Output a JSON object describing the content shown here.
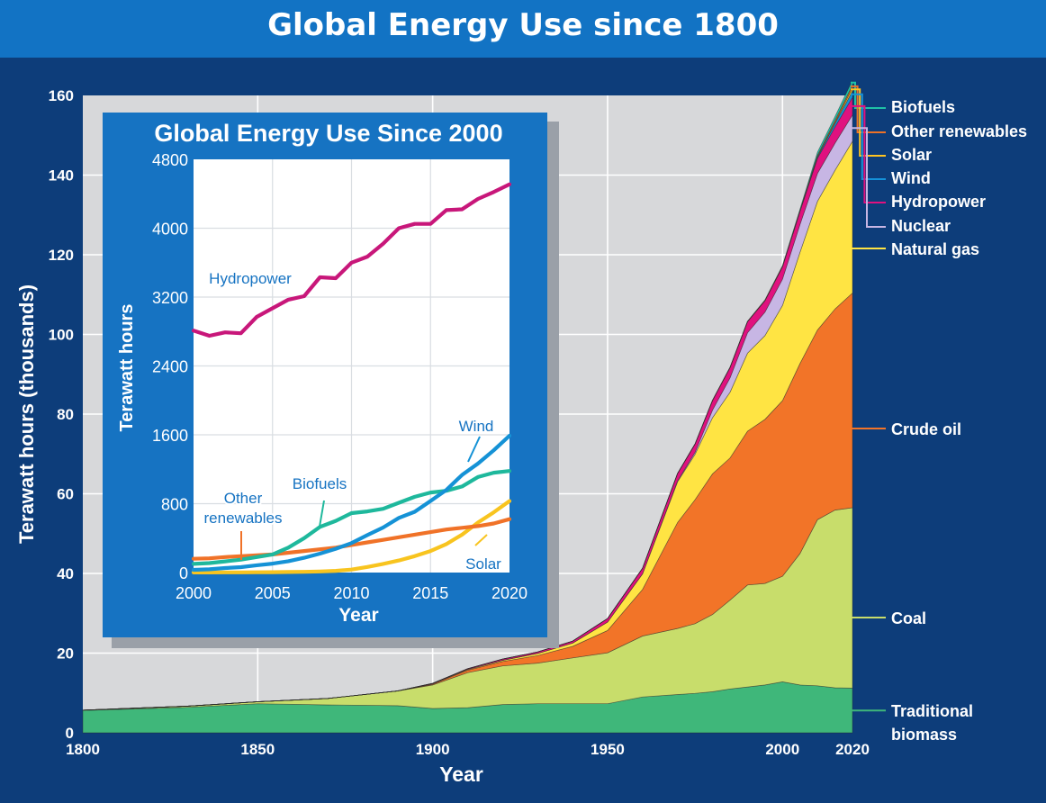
{
  "title": "Global Energy Use since 1800",
  "chart_data": [
    {
      "type": "area",
      "stacked": true,
      "title": "Global Energy Use since 1800",
      "xlabel": "Year",
      "ylabel": "Terawatt hours (thousands)",
      "xlim": [
        1800,
        2020
      ],
      "ylim": [
        0,
        160
      ],
      "xticks": [
        1800,
        1850,
        1900,
        1950,
        2000,
        2020
      ],
      "yticks": [
        0,
        20,
        40,
        60,
        80,
        100,
        120,
        140,
        160
      ],
      "grid": true,
      "legend_position": "right",
      "x": [
        1800,
        1830,
        1850,
        1870,
        1890,
        1900,
        1910,
        1920,
        1930,
        1940,
        1950,
        1960,
        1970,
        1975,
        1980,
        1985,
        1990,
        1995,
        2000,
        2005,
        2010,
        2015,
        2020
      ],
      "series": [
        {
          "name": "Traditional biomass",
          "color": "#3fb77a",
          "values": [
            5.6,
            6.4,
            7.3,
            7.0,
            6.8,
            6.1,
            6.3,
            7.1,
            7.3,
            7.3,
            7.3,
            9.0,
            9.6,
            9.9,
            10.3,
            11.0,
            11.5,
            12.0,
            12.8,
            12.0,
            11.8,
            11.3,
            11.2
          ]
        },
        {
          "name": "Coal",
          "color": "#c8dd6b",
          "values": [
            0.1,
            0.3,
            0.5,
            1.6,
            3.7,
            5.9,
            8.8,
            9.7,
            10.2,
            11.5,
            12.8,
            15.3,
            16.6,
            17.5,
            19.4,
            22.3,
            25.6,
            25.5,
            26.5,
            33.0,
            41.7,
            44.6,
            45.3
          ]
        },
        {
          "name": "Crude oil",
          "color": "#f27428",
          "values": [
            0,
            0,
            0,
            0,
            0,
            0.2,
            0.6,
            1.1,
            1.9,
            2.9,
            5.6,
            11.7,
            26.6,
            31.1,
            35.3,
            35.7,
            38.6,
            41.2,
            44.1,
            47.7,
            47.6,
            50.5,
            53.9
          ]
        },
        {
          "name": "Natural gas",
          "color": "#ffe443",
          "values": [
            0,
            0,
            0,
            0,
            0,
            0.1,
            0.2,
            0.3,
            0.5,
            0.8,
            2.1,
            3.9,
            10.2,
            11.4,
            14.1,
            16.5,
            19.6,
            21.0,
            23.9,
            27.9,
            32.3,
            34.8,
            38.1
          ]
        },
        {
          "name": "Nuclear",
          "color": "#c7b6e4",
          "values": [
            0,
            0,
            0,
            0,
            0,
            0,
            0,
            0,
            0,
            0,
            0,
            0,
            0.2,
            0.5,
            1.9,
            3.6,
            5.1,
            5.9,
            6.6,
            7.0,
            7.0,
            6.8,
            6.6
          ]
        },
        {
          "name": "Hydropower",
          "color": "#e0117f",
          "values": [
            0,
            0,
            0,
            0,
            0,
            0.1,
            0.2,
            0.3,
            0.4,
            0.5,
            0.9,
            1.4,
            1.9,
            2.1,
            2.4,
            2.6,
            2.8,
            2.9,
            3.1,
            3.3,
            3.8,
            4.1,
            4.4
          ]
        },
        {
          "name": "Wind",
          "color": "#1591d8",
          "values": [
            0,
            0,
            0,
            0,
            0,
            0,
            0,
            0,
            0,
            0,
            0,
            0,
            0,
            0,
            0,
            0,
            0,
            0,
            0.03,
            0.1,
            0.35,
            0.85,
            1.6
          ]
        },
        {
          "name": "Solar",
          "color": "#ffc421",
          "values": [
            0,
            0,
            0,
            0,
            0,
            0,
            0,
            0,
            0,
            0,
            0,
            0,
            0,
            0,
            0,
            0,
            0,
            0,
            0,
            0,
            0.03,
            0.25,
            0.85
          ]
        },
        {
          "name": "Other renewables",
          "color": "#ed7227",
          "values": [
            0,
            0,
            0,
            0,
            0,
            0,
            0,
            0,
            0,
            0,
            0,
            0,
            0,
            0,
            0.05,
            0.06,
            0.08,
            0.1,
            0.16,
            0.2,
            0.36,
            0.5,
            0.65
          ]
        },
        {
          "name": "Biofuels",
          "color": "#1fc1a6",
          "values": [
            0,
            0,
            0,
            0,
            0,
            0,
            0,
            0,
            0,
            0,
            0,
            0,
            0,
            0,
            0,
            0.02,
            0.03,
            0.05,
            0.1,
            0.25,
            0.8,
            1.0,
            1.2
          ]
        }
      ]
    },
    {
      "type": "line",
      "title": "Global Energy Use Since 2000",
      "xlabel": "Year",
      "ylabel": "Terawatt hours",
      "xlim": [
        2000,
        2020
      ],
      "ylim": [
        0,
        4800
      ],
      "xticks": [
        2000,
        2005,
        2010,
        2015,
        2020
      ],
      "yticks": [
        0,
        800,
        1600,
        2400,
        3200,
        4000,
        4800
      ],
      "grid": true,
      "x": [
        2000,
        2001,
        2002,
        2003,
        2004,
        2005,
        2006,
        2007,
        2008,
        2009,
        2010,
        2011,
        2012,
        2013,
        2014,
        2015,
        2016,
        2017,
        2018,
        2019,
        2020
      ],
      "series": [
        {
          "name": "Hydropower",
          "label": "Hydropower",
          "color": "#c8177a",
          "values": [
            2810,
            2750,
            2790,
            2780,
            2970,
            3070,
            3170,
            3210,
            3430,
            3420,
            3600,
            3670,
            3820,
            4000,
            4050,
            4050,
            4210,
            4220,
            4340,
            4420,
            4510
          ]
        },
        {
          "name": "Wind",
          "label": "Wind",
          "color": "#1592d6",
          "values": [
            31,
            38,
            52,
            63,
            85,
            104,
            132,
            171,
            220,
            276,
            342,
            435,
            523,
            635,
            706,
            831,
            959,
            1134,
            1265,
            1420,
            1590
          ]
        },
        {
          "name": "Biofuels",
          "label": "Biofuels",
          "color": "#1eb89c",
          "values": [
            100,
            110,
            130,
            150,
            180,
            210,
            290,
            400,
            530,
            600,
            690,
            710,
            740,
            810,
            880,
            930,
            950,
            1000,
            1110,
            1160,
            1180
          ]
        },
        {
          "name": "Other renewables",
          "label": "Other\nrenewables",
          "color": "#f07228",
          "values": [
            160,
            165,
            180,
            190,
            200,
            210,
            230,
            250,
            270,
            290,
            320,
            350,
            380,
            410,
            440,
            470,
            500,
            520,
            540,
            570,
            620
          ]
        },
        {
          "name": "Solar",
          "label": "Solar",
          "color": "#f8c41f",
          "values": [
            1,
            1,
            2,
            2,
            3,
            4,
            6,
            8,
            13,
            20,
            34,
            65,
            100,
            140,
            190,
            250,
            330,
            440,
            580,
            700,
            830
          ]
        }
      ]
    }
  ]
}
